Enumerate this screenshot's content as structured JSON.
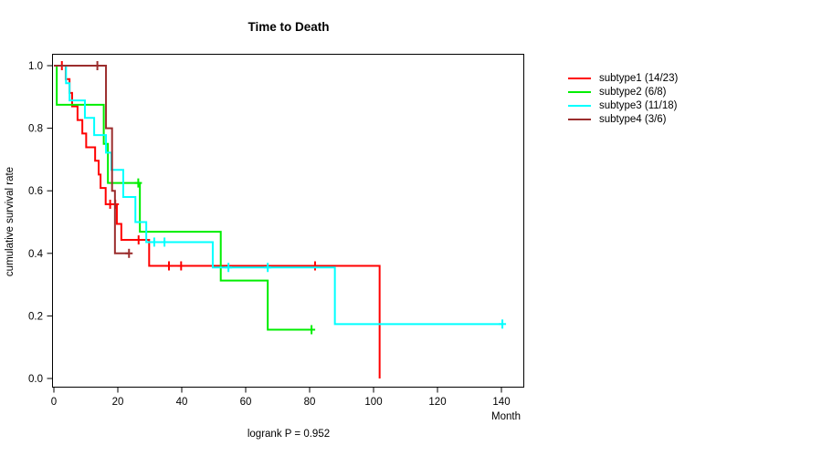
{
  "header": {
    "title": "Time to Death"
  },
  "axes": {
    "y_label": "cumulative survival rate",
    "x_label": "Month"
  },
  "footnote": "logrank P = 0.952",
  "chart_data": {
    "type": "line",
    "subtype": "kaplan-meier-step-curves",
    "title": "Time to Death",
    "xlabel": "Month",
    "ylabel": "cumulative survival rate",
    "annotation": "logrank P = 0.952",
    "xlim": [
      0,
      147
    ],
    "ylim": [
      0.0,
      1.0
    ],
    "x_ticks": [
      0,
      20,
      40,
      60,
      80,
      100,
      120,
      140
    ],
    "y_ticks": [
      0.0,
      0.2,
      0.4,
      0.6,
      0.8,
      1.0
    ],
    "grid": "off",
    "legend_position": "right-outside",
    "series": [
      {
        "name": "subtype1",
        "legend_label": "subtype1 (14/23)",
        "color": "#FF0000",
        "steps": [
          [
            0,
            1.0
          ],
          [
            3.7,
            0.957
          ],
          [
            4.9,
            0.913
          ],
          [
            5.7,
            0.87
          ],
          [
            7.4,
            0.826
          ],
          [
            8.9,
            0.783
          ],
          [
            10.1,
            0.739
          ],
          [
            12.9,
            0.696
          ],
          [
            14.0,
            0.652
          ],
          [
            14.6,
            0.609
          ],
          [
            16.2,
            0.557
          ],
          [
            19.7,
            0.494
          ],
          [
            21.1,
            0.443
          ],
          [
            29.8,
            0.36
          ],
          [
            101.9,
            0.0
          ]
        ],
        "end_month": 101.9,
        "censors": [
          [
            2.5,
            1.0
          ],
          [
            17.6,
            0.557
          ],
          [
            19.2,
            0.557
          ],
          [
            26.5,
            0.443
          ],
          [
            36.0,
            0.36
          ],
          [
            39.8,
            0.36
          ],
          [
            81.7,
            0.36
          ]
        ]
      },
      {
        "name": "subtype2",
        "legend_label": "subtype2 (6/8)",
        "color": "#00EE00",
        "steps": [
          [
            0,
            1.0
          ],
          [
            0.9,
            0.875
          ],
          [
            15.6,
            0.75
          ],
          [
            16.9,
            0.625
          ],
          [
            26.9,
            0.469
          ],
          [
            52.2,
            0.313
          ],
          [
            66.9,
            0.156
          ]
        ],
        "end_month": 80.6,
        "censors": [
          [
            26.4,
            0.625
          ],
          [
            80.6,
            0.156
          ]
        ]
      },
      {
        "name": "subtype3",
        "legend_label": "subtype3 (11/18)",
        "color": "#00FFFF",
        "steps": [
          [
            0,
            1.0
          ],
          [
            3.8,
            0.944
          ],
          [
            4.9,
            0.889
          ],
          [
            9.7,
            0.833
          ],
          [
            12.6,
            0.778
          ],
          [
            16.3,
            0.722
          ],
          [
            18.0,
            0.667
          ],
          [
            21.7,
            0.58
          ],
          [
            25.5,
            0.5
          ],
          [
            28.9,
            0.436
          ],
          [
            49.7,
            0.355
          ],
          [
            87.9,
            0.174
          ]
        ],
        "end_month": 140.3,
        "censors": [
          [
            31.4,
            0.436
          ],
          [
            34.6,
            0.436
          ],
          [
            54.6,
            0.355
          ],
          [
            66.9,
            0.355
          ],
          [
            140.3,
            0.174
          ]
        ]
      },
      {
        "name": "subtype4",
        "legend_label": "subtype4 (3/6)",
        "color": "#9B2D2D",
        "steps": [
          [
            0,
            1.0
          ],
          [
            16.3,
            0.8
          ],
          [
            18.2,
            0.6
          ],
          [
            19.1,
            0.4
          ]
        ],
        "end_month": 23.5,
        "censors": [
          [
            13.6,
            1.0
          ],
          [
            23.5,
            0.4
          ]
        ]
      }
    ]
  }
}
